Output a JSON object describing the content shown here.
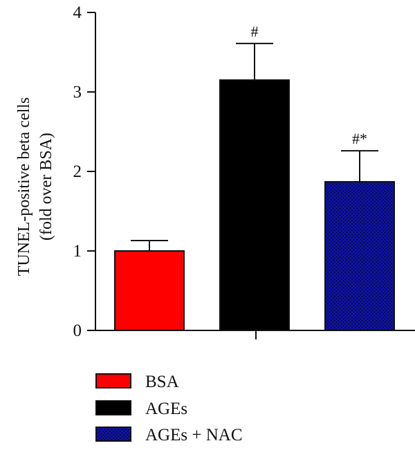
{
  "chart_data": {
    "type": "bar",
    "categories": [
      "BSA",
      "AGEs",
      "AGEs + NAC"
    ],
    "values": [
      1.0,
      3.15,
      1.87
    ],
    "errors": [
      0.13,
      0.46,
      0.39
    ],
    "annotations": [
      "",
      "#",
      "#*"
    ],
    "colors": [
      "#ff0000",
      "#000000",
      "#0f14a8"
    ],
    "patterns": [
      "solid",
      "solid",
      "dots"
    ],
    "ylabel": [
      "TUNEL-positive beta cells",
      "(fold over BSA)"
    ],
    "ylim": [
      0,
      4
    ],
    "yticks": [
      "0",
      "1",
      "2",
      "3",
      "4"
    ],
    "grid": false,
    "legend_position": "bottom-left"
  }
}
